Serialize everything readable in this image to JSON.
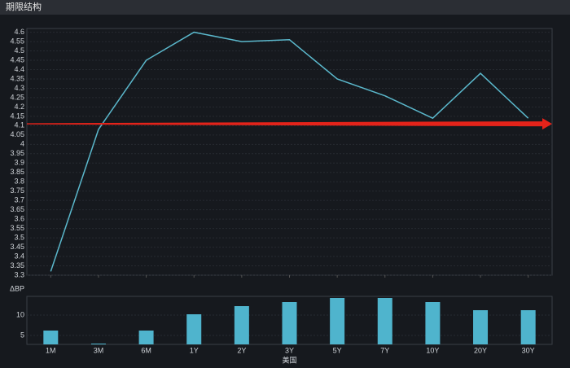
{
  "header": {
    "title": "期限结构"
  },
  "chart_data": [
    {
      "type": "line",
      "color": "#5bb8cc",
      "grid": true,
      "values": [
        3.32,
        4.08,
        4.45,
        4.6,
        4.55,
        4.56,
        4.35,
        4.26,
        4.14,
        4.38,
        4.14
      ],
      "ylim": [
        3.3,
        4.62
      ],
      "yticks": [
        3.3,
        3.35,
        3.4,
        3.45,
        3.5,
        3.55,
        3.6,
        3.65,
        3.7,
        3.75,
        3.8,
        3.85,
        3.9,
        3.95,
        4,
        4.05,
        4.1,
        4.15,
        4.2,
        4.25,
        4.3,
        4.35,
        4.4,
        4.45,
        4.5,
        4.55,
        4.6
      ],
      "reference_arrow": {
        "value": 4.11,
        "color": "#e4231a"
      }
    },
    {
      "type": "bar",
      "ylabel": "ΔBP",
      "xlabel": "美国",
      "color": "#4fb4cd",
      "grid": true,
      "categories": [
        "1M",
        "3M",
        "6M",
        "1Y",
        "2Y",
        "3Y",
        "5Y",
        "7Y",
        "10Y",
        "20Y",
        "30Y"
      ],
      "values": [
        6.2,
        3,
        6.2,
        10.2,
        12.2,
        13.2,
        14.2,
        14.2,
        13.2,
        11.2,
        11.2
      ],
      "ylim": [
        2.8,
        14.6
      ],
      "yticks": [
        5,
        10
      ]
    }
  ]
}
